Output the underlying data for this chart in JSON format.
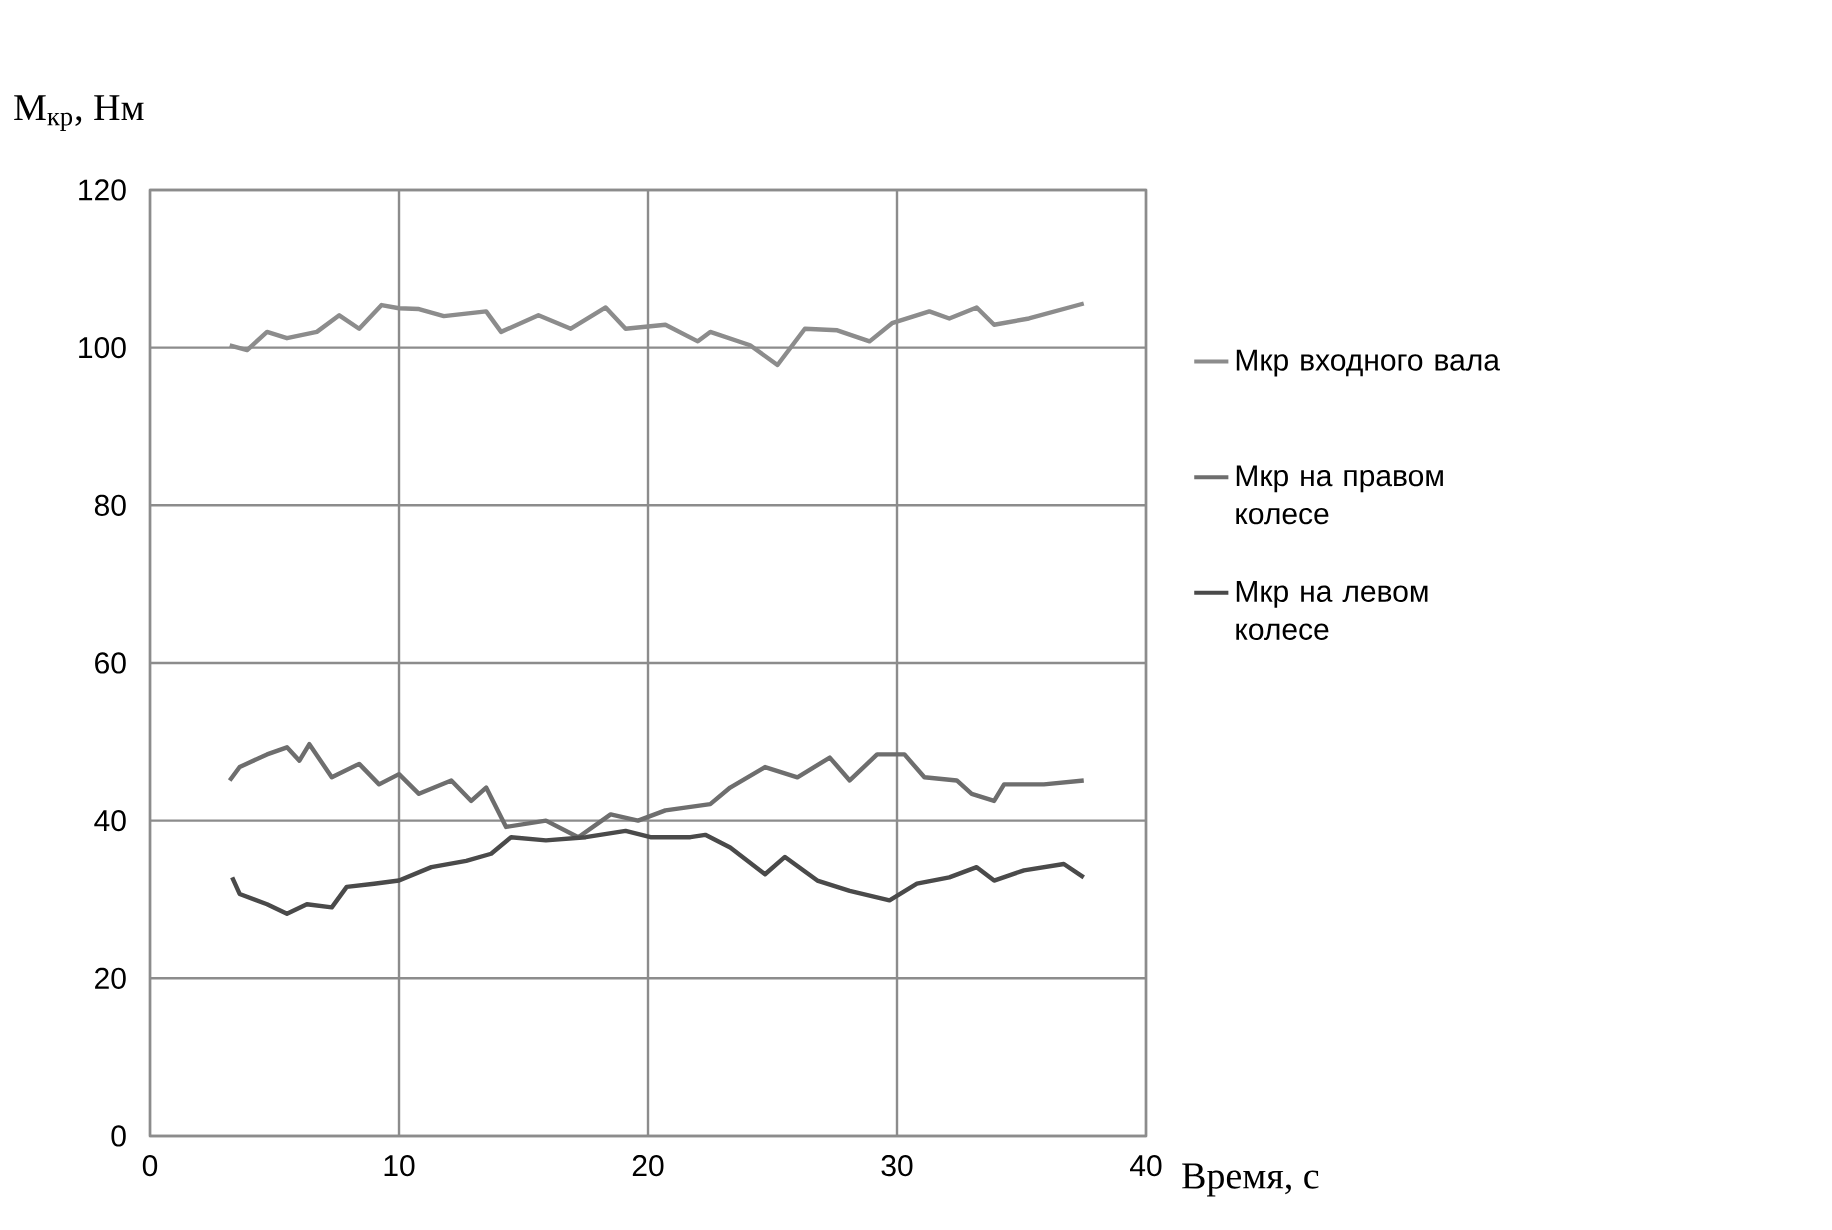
{
  "chart_data": {
    "type": "line",
    "xlabel": "Время,  с",
    "ylabel": "M$_{кр}$, Нм",
    "xlim": [
      0,
      40
    ],
    "xticks": [
      0,
      10,
      20,
      30,
      40
    ],
    "ylim": [
      0,
      120
    ],
    "yticks": [
      0,
      20,
      40,
      60,
      80,
      100,
      120
    ],
    "grid": true,
    "legend": "right",
    "marker": "none",
    "line_style": "solid",
    "series": [
      {
        "name": "Мкр входного вала",
        "color": "#8c8c8c",
        "x": [
          3.2,
          3.9,
          4.7,
          5.5,
          6.7,
          7.6,
          8.4,
          9.3,
          10,
          10.8,
          11.8,
          13.5,
          14.1,
          15.6,
          16.9,
          18.3,
          19.1,
          20.7,
          22,
          22.5,
          24.1,
          25.2,
          26.3,
          27.6,
          28.9,
          29.8,
          31.3,
          32.1,
          33.2,
          33.9,
          35.3,
          37.5
        ],
        "values": [
          100.3,
          99.7,
          102,
          101.2,
          102,
          104.1,
          102.4,
          105.4,
          105,
          104.9,
          104,
          104.6,
          102,
          104.1,
          102.4,
          105.1,
          102.4,
          102.9,
          100.8,
          102,
          100.3,
          97.8,
          102.4,
          102.2,
          100.8,
          103.1,
          104.6,
          103.7,
          105.1,
          102.9,
          103.7,
          105.6
        ]
      },
      {
        "name": "Мкр на правом колесе",
        "color": "#6e6e6e",
        "x": [
          3.2,
          3.6,
          4.7,
          5.5,
          6,
          6.4,
          7.3,
          8.4,
          9.2,
          10,
          10.8,
          12.1,
          12.9,
          13.5,
          14.3,
          15.9,
          17.2,
          18.5,
          19.6,
          20.7,
          22.5,
          23.3,
          24.7,
          26,
          27.3,
          28.1,
          29.2,
          30.3,
          31.1,
          32.4,
          33,
          33.9,
          34.3,
          35.9,
          37.5
        ],
        "values": [
          45.1,
          46.8,
          48.4,
          49.3,
          47.6,
          49.7,
          45.5,
          47.2,
          44.6,
          45.9,
          43.4,
          45.1,
          42.5,
          44.2,
          39.2,
          40,
          37.9,
          40.8,
          40,
          41.3,
          42.1,
          44.2,
          46.8,
          45.5,
          48,
          45.1,
          48.4,
          48.4,
          45.5,
          45.1,
          43.4,
          42.5,
          44.6,
          44.6,
          45.1
        ]
      },
      {
        "name": "Мкр на левом колесе",
        "color": "#4a4a4a",
        "x": [
          3.3,
          3.6,
          4.7,
          5.5,
          6.3,
          7.3,
          7.9,
          9,
          10,
          11.3,
          12.7,
          13.7,
          14.5,
          15.9,
          17.5,
          19.1,
          20.1,
          21.7,
          22.3,
          23.3,
          24.7,
          25.5,
          26.8,
          28.1,
          29.7,
          30.8,
          32.1,
          33.2,
          33.9,
          35.1,
          36.7,
          37.5
        ],
        "values": [
          32.8,
          30.7,
          29.4,
          28.2,
          29.4,
          29,
          31.6,
          32,
          32.4,
          34.1,
          34.9,
          35.8,
          37.9,
          37.5,
          37.9,
          38.7,
          37.9,
          37.9,
          38.2,
          36.6,
          33.2,
          35.4,
          32.4,
          31.1,
          29.9,
          32,
          32.8,
          34.1,
          32.4,
          33.7,
          34.5,
          32.8
        ]
      }
    ]
  }
}
